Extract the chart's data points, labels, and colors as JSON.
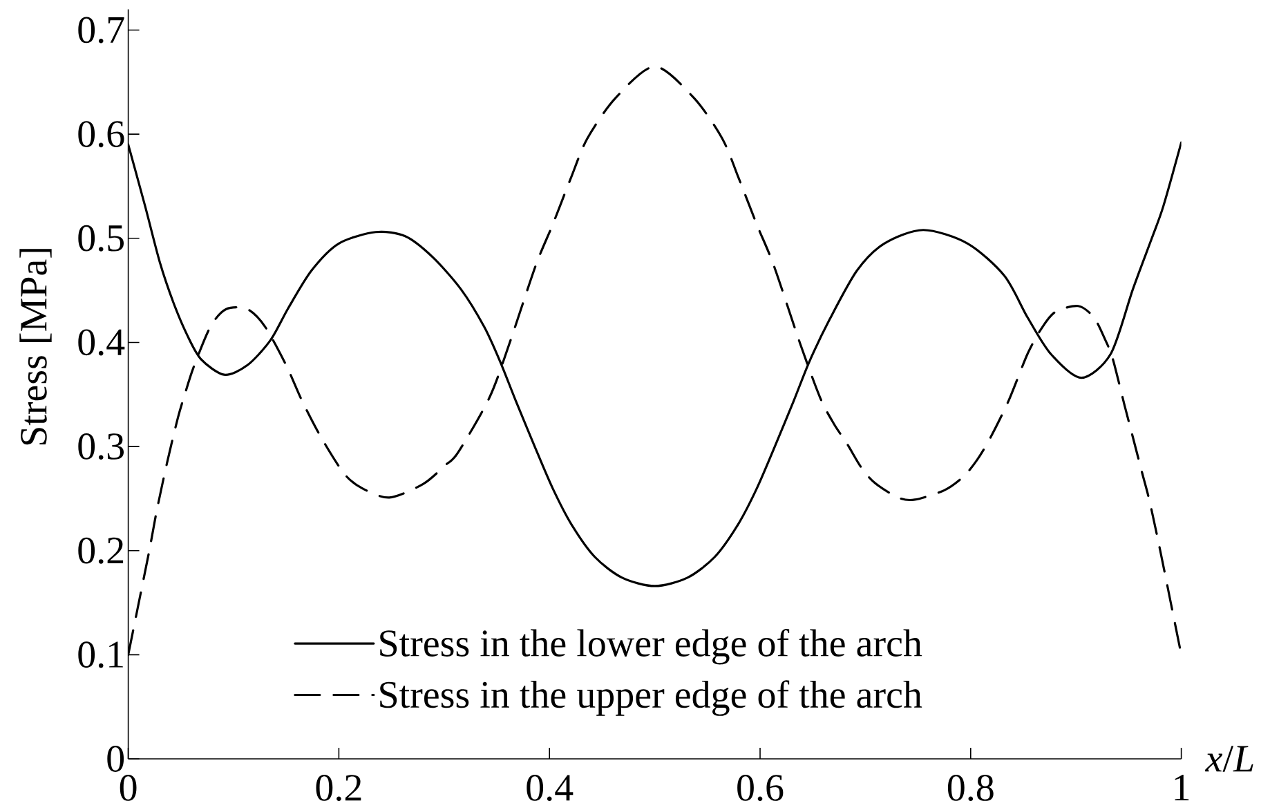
{
  "chart_data": {
    "type": "line",
    "xlabel": "*x*/*L*",
    "ylabel": "Stress [MPa]",
    "xlim": [
      0,
      1
    ],
    "ylim": [
      0,
      0.72
    ],
    "xticks": [
      0,
      0.2,
      0.4,
      0.6,
      0.8,
      1
    ],
    "yticks": [
      0,
      0.1,
      0.2,
      0.3,
      0.4,
      0.5,
      0.6,
      0.7
    ],
    "legend": "bottom",
    "series": [
      {
        "name": "Stress in the lower edge of the arch",
        "color": "#000000",
        "line_style": "solid",
        "x": [
          0,
          0.016,
          0.03,
          0.043,
          0.056,
          0.069,
          0.091,
          0.113,
          0.135,
          0.152,
          0.174,
          0.2,
          0.235,
          0.263,
          0.289,
          0.316,
          0.338,
          0.353,
          0.368,
          0.386,
          0.403,
          0.421,
          0.443,
          0.469,
          0.5,
          0.531,
          0.557,
          0.579,
          0.597,
          0.614,
          0.632,
          0.647,
          0.666,
          0.692,
          0.718,
          0.755,
          0.797,
          0.832,
          0.854,
          0.876,
          0.905,
          0.933,
          0.954,
          0.972,
          0.983,
          1
        ],
        "values": [
          0.59,
          0.531,
          0.477,
          0.438,
          0.407,
          0.384,
          0.369,
          0.378,
          0.402,
          0.433,
          0.469,
          0.495,
          0.506,
          0.502,
          0.482,
          0.451,
          0.415,
          0.382,
          0.344,
          0.3,
          0.26,
          0.225,
          0.194,
          0.174,
          0.166,
          0.174,
          0.194,
          0.225,
          0.26,
          0.3,
          0.344,
          0.382,
          0.422,
          0.469,
          0.495,
          0.508,
          0.495,
          0.464,
          0.424,
          0.389,
          0.366,
          0.389,
          0.451,
          0.5,
          0.531,
          0.592
        ]
      },
      {
        "name": "Stress in the upper edge of the arch",
        "color": "#000000",
        "line_style": "dashed",
        "x": [
          0,
          0.01,
          0.02,
          0.027,
          0.037,
          0.047,
          0.054,
          0.062,
          0.078,
          0.093,
          0.113,
          0.13,
          0.15,
          0.165,
          0.183,
          0.205,
          0.222,
          0.248,
          0.28,
          0.301,
          0.313,
          0.343,
          0.362,
          0.387,
          0.403,
          0.42,
          0.436,
          0.463,
          0.5,
          0.537,
          0.564,
          0.58,
          0.597,
          0.613,
          0.638,
          0.657,
          0.67,
          0.683,
          0.696,
          0.709,
          0.731,
          0.747,
          0.775,
          0.793,
          0.806,
          0.819,
          0.836,
          0.854,
          0.867,
          0.88,
          0.902,
          0.917,
          0.928,
          0.935,
          0.946,
          0.954,
          0.963,
          0.97,
          0.98,
          0.99,
          1
        ],
        "values": [
          0.1,
          0.15,
          0.2,
          0.238,
          0.285,
          0.327,
          0.351,
          0.376,
          0.415,
          0.432,
          0.432,
          0.415,
          0.378,
          0.344,
          0.309,
          0.274,
          0.26,
          0.251,
          0.264,
          0.282,
          0.294,
          0.347,
          0.399,
          0.474,
          0.513,
          0.557,
          0.596,
          0.635,
          0.665,
          0.635,
          0.596,
          0.557,
          0.513,
          0.474,
          0.399,
          0.347,
          0.322,
          0.302,
          0.28,
          0.265,
          0.251,
          0.249,
          0.258,
          0.271,
          0.287,
          0.309,
          0.344,
          0.389,
          0.413,
          0.429,
          0.435,
          0.424,
          0.402,
          0.384,
          0.34,
          0.309,
          0.274,
          0.247,
          0.2,
          0.15,
          0.1
        ]
      }
    ]
  }
}
